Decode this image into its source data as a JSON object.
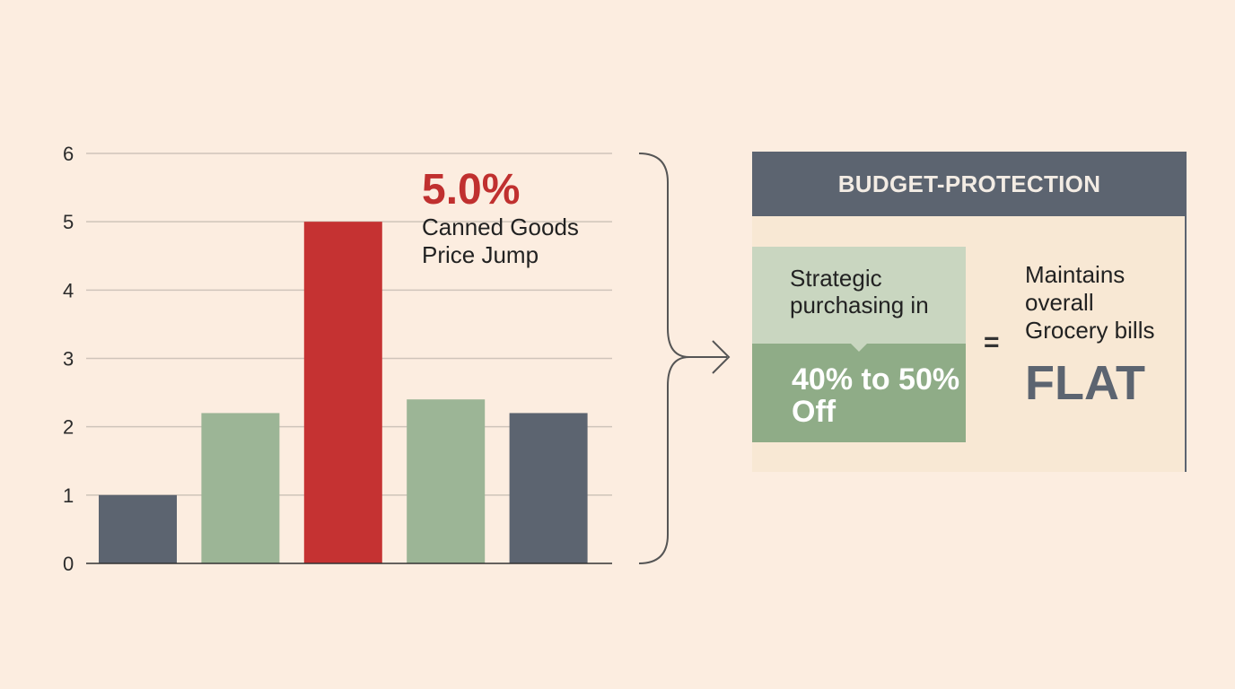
{
  "chart_data": {
    "type": "bar",
    "categories": [
      "",
      "",
      "",
      "",
      ""
    ],
    "values": [
      1.0,
      2.2,
      5.0,
      2.4,
      2.2
    ],
    "bar_colors": [
      "#5c6470",
      "#9cb596",
      "#c53232",
      "#9cb596",
      "#5c6470"
    ],
    "yticks": [
      "0",
      "1",
      "2",
      "3",
      "4",
      "5",
      "6"
    ],
    "ylim": [
      0,
      6
    ],
    "grid": true,
    "title": "",
    "xlabel": "",
    "ylabel": "",
    "annotation": {
      "value": "5.0%",
      "text": "Canned Goods Price Jump",
      "color": "#c0302f"
    }
  },
  "panel": {
    "header": "BUDGET-PROTECTION",
    "strategy_text": "Strategic purchasing in",
    "discount_text": "40% to 50% Off",
    "operator": "=",
    "result_text": "Maintains overall Grocery bills",
    "result_value": "FLAT",
    "colors": {
      "header_bg": "#5c6470",
      "panel_bg": "#f8e8d4",
      "light_green": "#c9d6c0",
      "dark_green": "#8fac87"
    }
  }
}
